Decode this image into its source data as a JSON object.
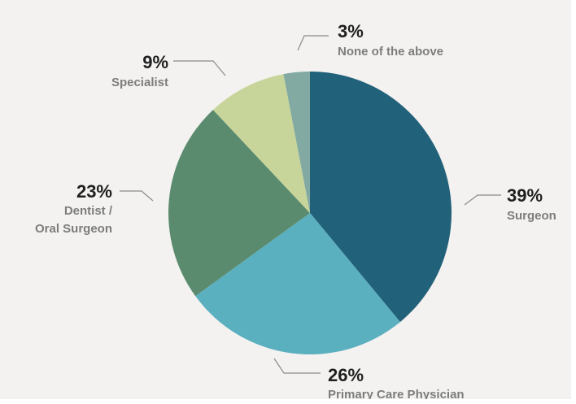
{
  "chart_data": {
    "type": "pie",
    "title": "",
    "slices": [
      {
        "pct_label": "39%",
        "value": 39,
        "label_lines": [
          "Surgeon"
        ],
        "color": "#22617a"
      },
      {
        "pct_label": "26%",
        "value": 26,
        "label_lines": [
          "Primary Care Physician"
        ],
        "color": "#5bb0bf"
      },
      {
        "pct_label": "23%",
        "value": 23,
        "label_lines": [
          "Dentist /",
          "Oral Surgeon"
        ],
        "color": "#5a8b6f"
      },
      {
        "pct_label": "9%",
        "value": 9,
        "label_lines": [
          "Specialist"
        ],
        "color": "#c8d59a"
      },
      {
        "pct_label": "3%",
        "value": 3,
        "label_lines": [
          "None of the above"
        ],
        "color": "#82a9a2"
      }
    ],
    "start": "12 o'clock",
    "direction": "clockwise",
    "legend": "none (direct labels)"
  }
}
